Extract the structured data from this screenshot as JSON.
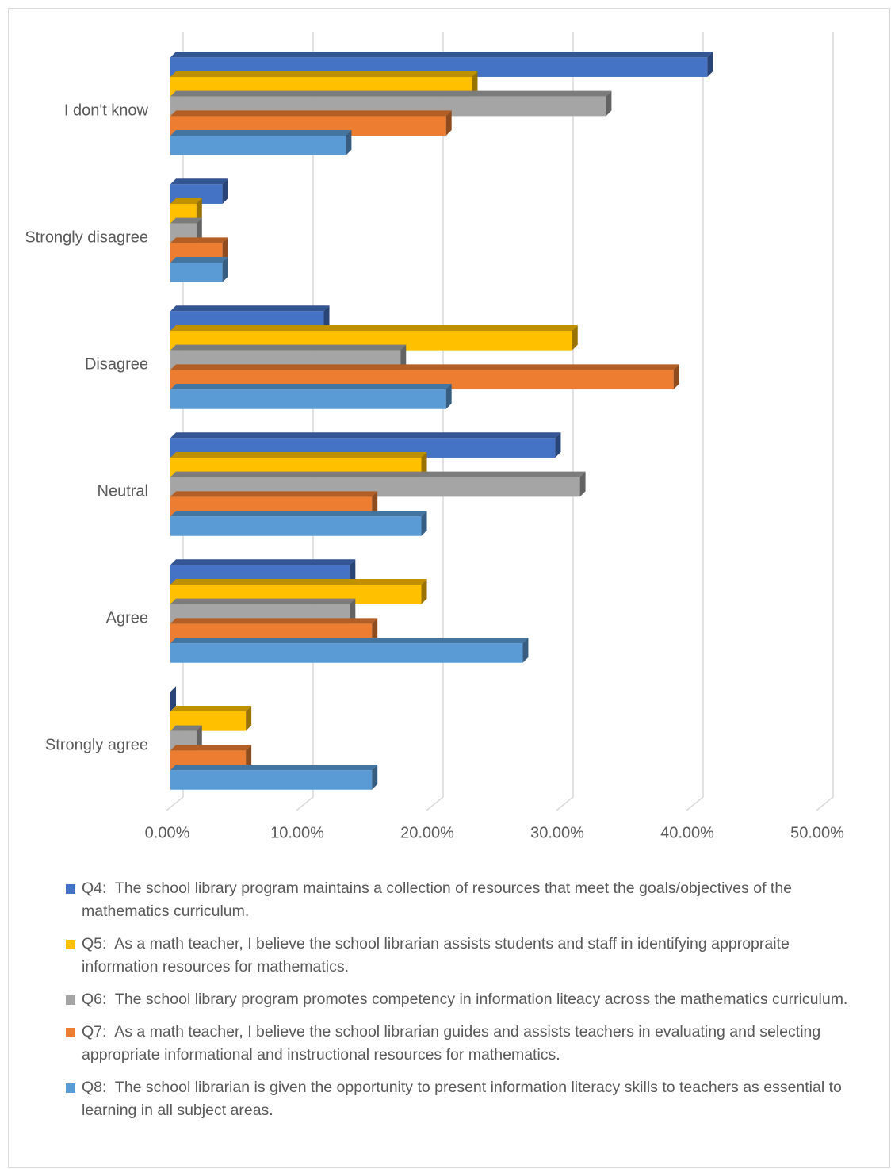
{
  "chart_data": {
    "type": "bar3d_horizontal",
    "categories": [
      "I don't know",
      "Strongly disagree",
      "Disagree",
      "Neutral",
      "Agree",
      "Strongly agree"
    ],
    "series": [
      {
        "name": "Q4:  The school library program maintains a collection of resources that meet the goals/objectives of the mathematics curriculum.",
        "color": "#4472c4",
        "values": [
          41.3,
          4.0,
          11.8,
          29.6,
          13.8,
          0
        ]
      },
      {
        "name": "Q5:  As a math teacher, I believe the school librarian assists students and staff in identifying appropraite information resources for mathematics.",
        "color": "#ffc000",
        "values": [
          23.2,
          2.0,
          30.9,
          19.3,
          19.3,
          5.8
        ]
      },
      {
        "name": "Q6:  The school library program promotes competency in information liteacy across the mathematics curriculum.",
        "color": "#a5a5a5",
        "values": [
          33.5,
          2.0,
          17.7,
          31.5,
          13.8,
          2.0
        ]
      },
      {
        "name": "Q7:  As a math teacher, I believe the school librarian guides and assists teachers in evaluating and selecting appropriate informational and instructional resources for mathematics.",
        "color": "#ed7d31",
        "values": [
          21.2,
          4.0,
          38.7,
          15.5,
          15.5,
          5.8
        ]
      },
      {
        "name": "Q8:  The school librarian is given the opportunity to present information literacy skills to teachers as essential to learning in all subject areas.",
        "color": "#5b9bd5",
        "values": [
          13.5,
          4.0,
          21.2,
          19.3,
          27.1,
          15.5
        ]
      }
    ],
    "xlim": [
      0,
      50
    ],
    "xticks": [
      {
        "value": 0,
        "label": "0.00%"
      },
      {
        "value": 10,
        "label": "10.00%"
      },
      {
        "value": 20,
        "label": "20.00%"
      },
      {
        "value": 30,
        "label": "30.00%"
      },
      {
        "value": 40,
        "label": "40.00%"
      },
      {
        "value": 50,
        "label": "50.00%"
      }
    ],
    "grid": true,
    "legend": "bottom"
  }
}
